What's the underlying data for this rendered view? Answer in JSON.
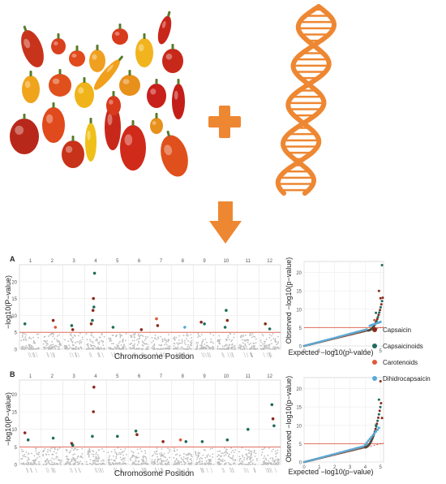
{
  "figure": {
    "panel_a_label": "A",
    "panel_b_label": "B",
    "manhattan_xlabel": "Chromosome Position",
    "manhattan_ylabel": "−log10(P−value)",
    "qq_xlabel": "Expected −log10(p−value)",
    "qq_ylabel": "Observed −log10(p−value)"
  },
  "icons": {
    "peppers": "pepper-collage",
    "plus": "plus-icon",
    "dna": "dna-helix-icon",
    "arrow": "arrow-down-icon"
  },
  "colors": {
    "orange": "#ee8732",
    "threshold": "#e06a5a",
    "capsaicin": "#8a2a1c",
    "capsaicinoids": "#1f6b5c",
    "carotenoids": "#e0573a",
    "dihidrocapsaicin": "#5aaad6",
    "background_points": "#bdbdbd"
  },
  "legend": [
    {
      "name": "Capsaicin",
      "color": "#8a2a1c"
    },
    {
      "name": "Capsaicinoids",
      "color": "#1f6b5c"
    },
    {
      "name": "Carotenoids",
      "color": "#e0573a"
    },
    {
      "name": "Dihidrocapsaicin",
      "color": "#5aaad6"
    }
  ],
  "chart_data": [
    {
      "type": "scatter",
      "panel": "A",
      "chromosomes": [
        "1",
        "2",
        "3",
        "4",
        "5",
        "6",
        "7",
        "8",
        "9",
        "10",
        "11",
        "12"
      ],
      "threshold": 5,
      "ylim": [
        0,
        25
      ],
      "yticks": [
        0,
        5,
        10,
        15,
        20
      ],
      "significant": [
        {
          "chr": "1",
          "pos": 0.25,
          "y": 7.5,
          "trait": "Capsaicinoids"
        },
        {
          "chr": "2",
          "pos": 0.55,
          "y": 8.5,
          "trait": "Capsaicin"
        },
        {
          "chr": "2",
          "pos": 0.65,
          "y": 6.5,
          "trait": "Carotenoids"
        },
        {
          "chr": "3",
          "pos": 0.4,
          "y": 7.0,
          "trait": "Capsaicinoids"
        },
        {
          "chr": "3",
          "pos": 0.45,
          "y": 5.8,
          "trait": "Capsaicin"
        },
        {
          "chr": "4",
          "pos": 0.45,
          "y": 22.5,
          "trait": "Capsaicinoids"
        },
        {
          "chr": "4",
          "pos": 0.4,
          "y": 15.0,
          "trait": "Capsaicin"
        },
        {
          "chr": "4",
          "pos": 0.42,
          "y": 12.5,
          "trait": "Capsaicinoids"
        },
        {
          "chr": "4",
          "pos": 0.38,
          "y": 11.5,
          "trait": "Capsaicin"
        },
        {
          "chr": "4",
          "pos": 0.35,
          "y": 8.5,
          "trait": "Capsaicinoids"
        },
        {
          "chr": "4",
          "pos": 0.3,
          "y": 7.5,
          "trait": "Capsaicin"
        },
        {
          "chr": "5",
          "pos": 0.3,
          "y": 6.5,
          "trait": "Capsaicinoids"
        },
        {
          "chr": "6",
          "pos": 0.6,
          "y": 5.8,
          "trait": "Capsaicin"
        },
        {
          "chr": "7",
          "pos": 0.3,
          "y": 9.0,
          "trait": "Carotenoids"
        },
        {
          "chr": "7",
          "pos": 0.35,
          "y": 7.0,
          "trait": "Capsaicin"
        },
        {
          "chr": "8",
          "pos": 0.6,
          "y": 6.5,
          "trait": "Dihidrocapsaicin"
        },
        {
          "chr": "9",
          "pos": 0.35,
          "y": 8.0,
          "trait": "Capsaicin"
        },
        {
          "chr": "9",
          "pos": 0.5,
          "y": 7.5,
          "trait": "Capsaicinoids"
        },
        {
          "chr": "10",
          "pos": 0.5,
          "y": 11.5,
          "trait": "Capsaicinoids"
        },
        {
          "chr": "10",
          "pos": 0.55,
          "y": 8.5,
          "trait": "Capsaicin"
        },
        {
          "chr": "10",
          "pos": 0.45,
          "y": 6.5,
          "trait": "Capsaicinoids"
        },
        {
          "chr": "12",
          "pos": 0.3,
          "y": 7.5,
          "trait": "Capsaicin"
        },
        {
          "chr": "12",
          "pos": 0.5,
          "y": 6.0,
          "trait": "Capsaicinoids"
        }
      ]
    },
    {
      "type": "scatter",
      "panel": "A-QQ",
      "xlim": [
        0,
        5.2
      ],
      "ylim": [
        0,
        23
      ],
      "xticks": [
        0,
        1,
        2,
        3,
        4,
        5
      ],
      "yticks": [
        0,
        5,
        10,
        15,
        20
      ],
      "threshold": 5
    },
    {
      "type": "scatter",
      "panel": "B",
      "chromosomes": [
        "1",
        "2",
        "3",
        "4",
        "5",
        "6",
        "7",
        "8",
        "9",
        "10",
        "11",
        "12"
      ],
      "threshold": 5,
      "ylim": [
        0,
        24
      ],
      "yticks": [
        0,
        5,
        10,
        15,
        20
      ],
      "significant": [
        {
          "chr": "1",
          "pos": 0.25,
          "y": 9.0,
          "trait": "Capsaicin"
        },
        {
          "chr": "1",
          "pos": 0.4,
          "y": 7.0,
          "trait": "Capsaicinoids"
        },
        {
          "chr": "2",
          "pos": 0.55,
          "y": 7.5,
          "trait": "Capsaicinoids"
        },
        {
          "chr": "3",
          "pos": 0.4,
          "y": 6.0,
          "trait": "Capsaicin"
        },
        {
          "chr": "3",
          "pos": 0.45,
          "y": 5.5,
          "trait": "Capsaicinoids"
        },
        {
          "chr": "4",
          "pos": 0.42,
          "y": 22.0,
          "trait": "Capsaicin"
        },
        {
          "chr": "4",
          "pos": 0.4,
          "y": 15.0,
          "trait": "Capsaicin"
        },
        {
          "chr": "4",
          "pos": 0.35,
          "y": 8.0,
          "trait": "Capsaicinoids"
        },
        {
          "chr": "5",
          "pos": 0.5,
          "y": 8.0,
          "trait": "Capsaicinoids"
        },
        {
          "chr": "6",
          "pos": 0.35,
          "y": 9.5,
          "trait": "Capsaicinoids"
        },
        {
          "chr": "6",
          "pos": 0.4,
          "y": 8.5,
          "trait": "Capsaicin"
        },
        {
          "chr": "7",
          "pos": 0.6,
          "y": 6.5,
          "trait": "Capsaicin"
        },
        {
          "chr": "8",
          "pos": 0.4,
          "y": 7.0,
          "trait": "Carotenoids"
        },
        {
          "chr": "8",
          "pos": 0.65,
          "y": 6.5,
          "trait": "Capsaicinoids"
        },
        {
          "chr": "9",
          "pos": 0.4,
          "y": 6.5,
          "trait": "Capsaicinoids"
        },
        {
          "chr": "10",
          "pos": 0.55,
          "y": 7.0,
          "trait": "Capsaicinoids"
        },
        {
          "chr": "11",
          "pos": 0.5,
          "y": 10.0,
          "trait": "Capsaicinoids"
        },
        {
          "chr": "12",
          "pos": 0.6,
          "y": 17.0,
          "trait": "Capsaicinoids"
        },
        {
          "chr": "12",
          "pos": 0.65,
          "y": 13.0,
          "trait": "Capsaicin"
        },
        {
          "chr": "12",
          "pos": 0.7,
          "y": 11.0,
          "trait": "Capsaicinoids"
        }
      ]
    },
    {
      "type": "scatter",
      "panel": "B-QQ",
      "xlim": [
        0,
        5.2
      ],
      "ylim": [
        0,
        23
      ],
      "xticks": [
        0,
        1,
        2,
        3,
        4,
        5
      ],
      "yticks": [
        0,
        5,
        10,
        15,
        20
      ],
      "threshold": 5
    }
  ]
}
